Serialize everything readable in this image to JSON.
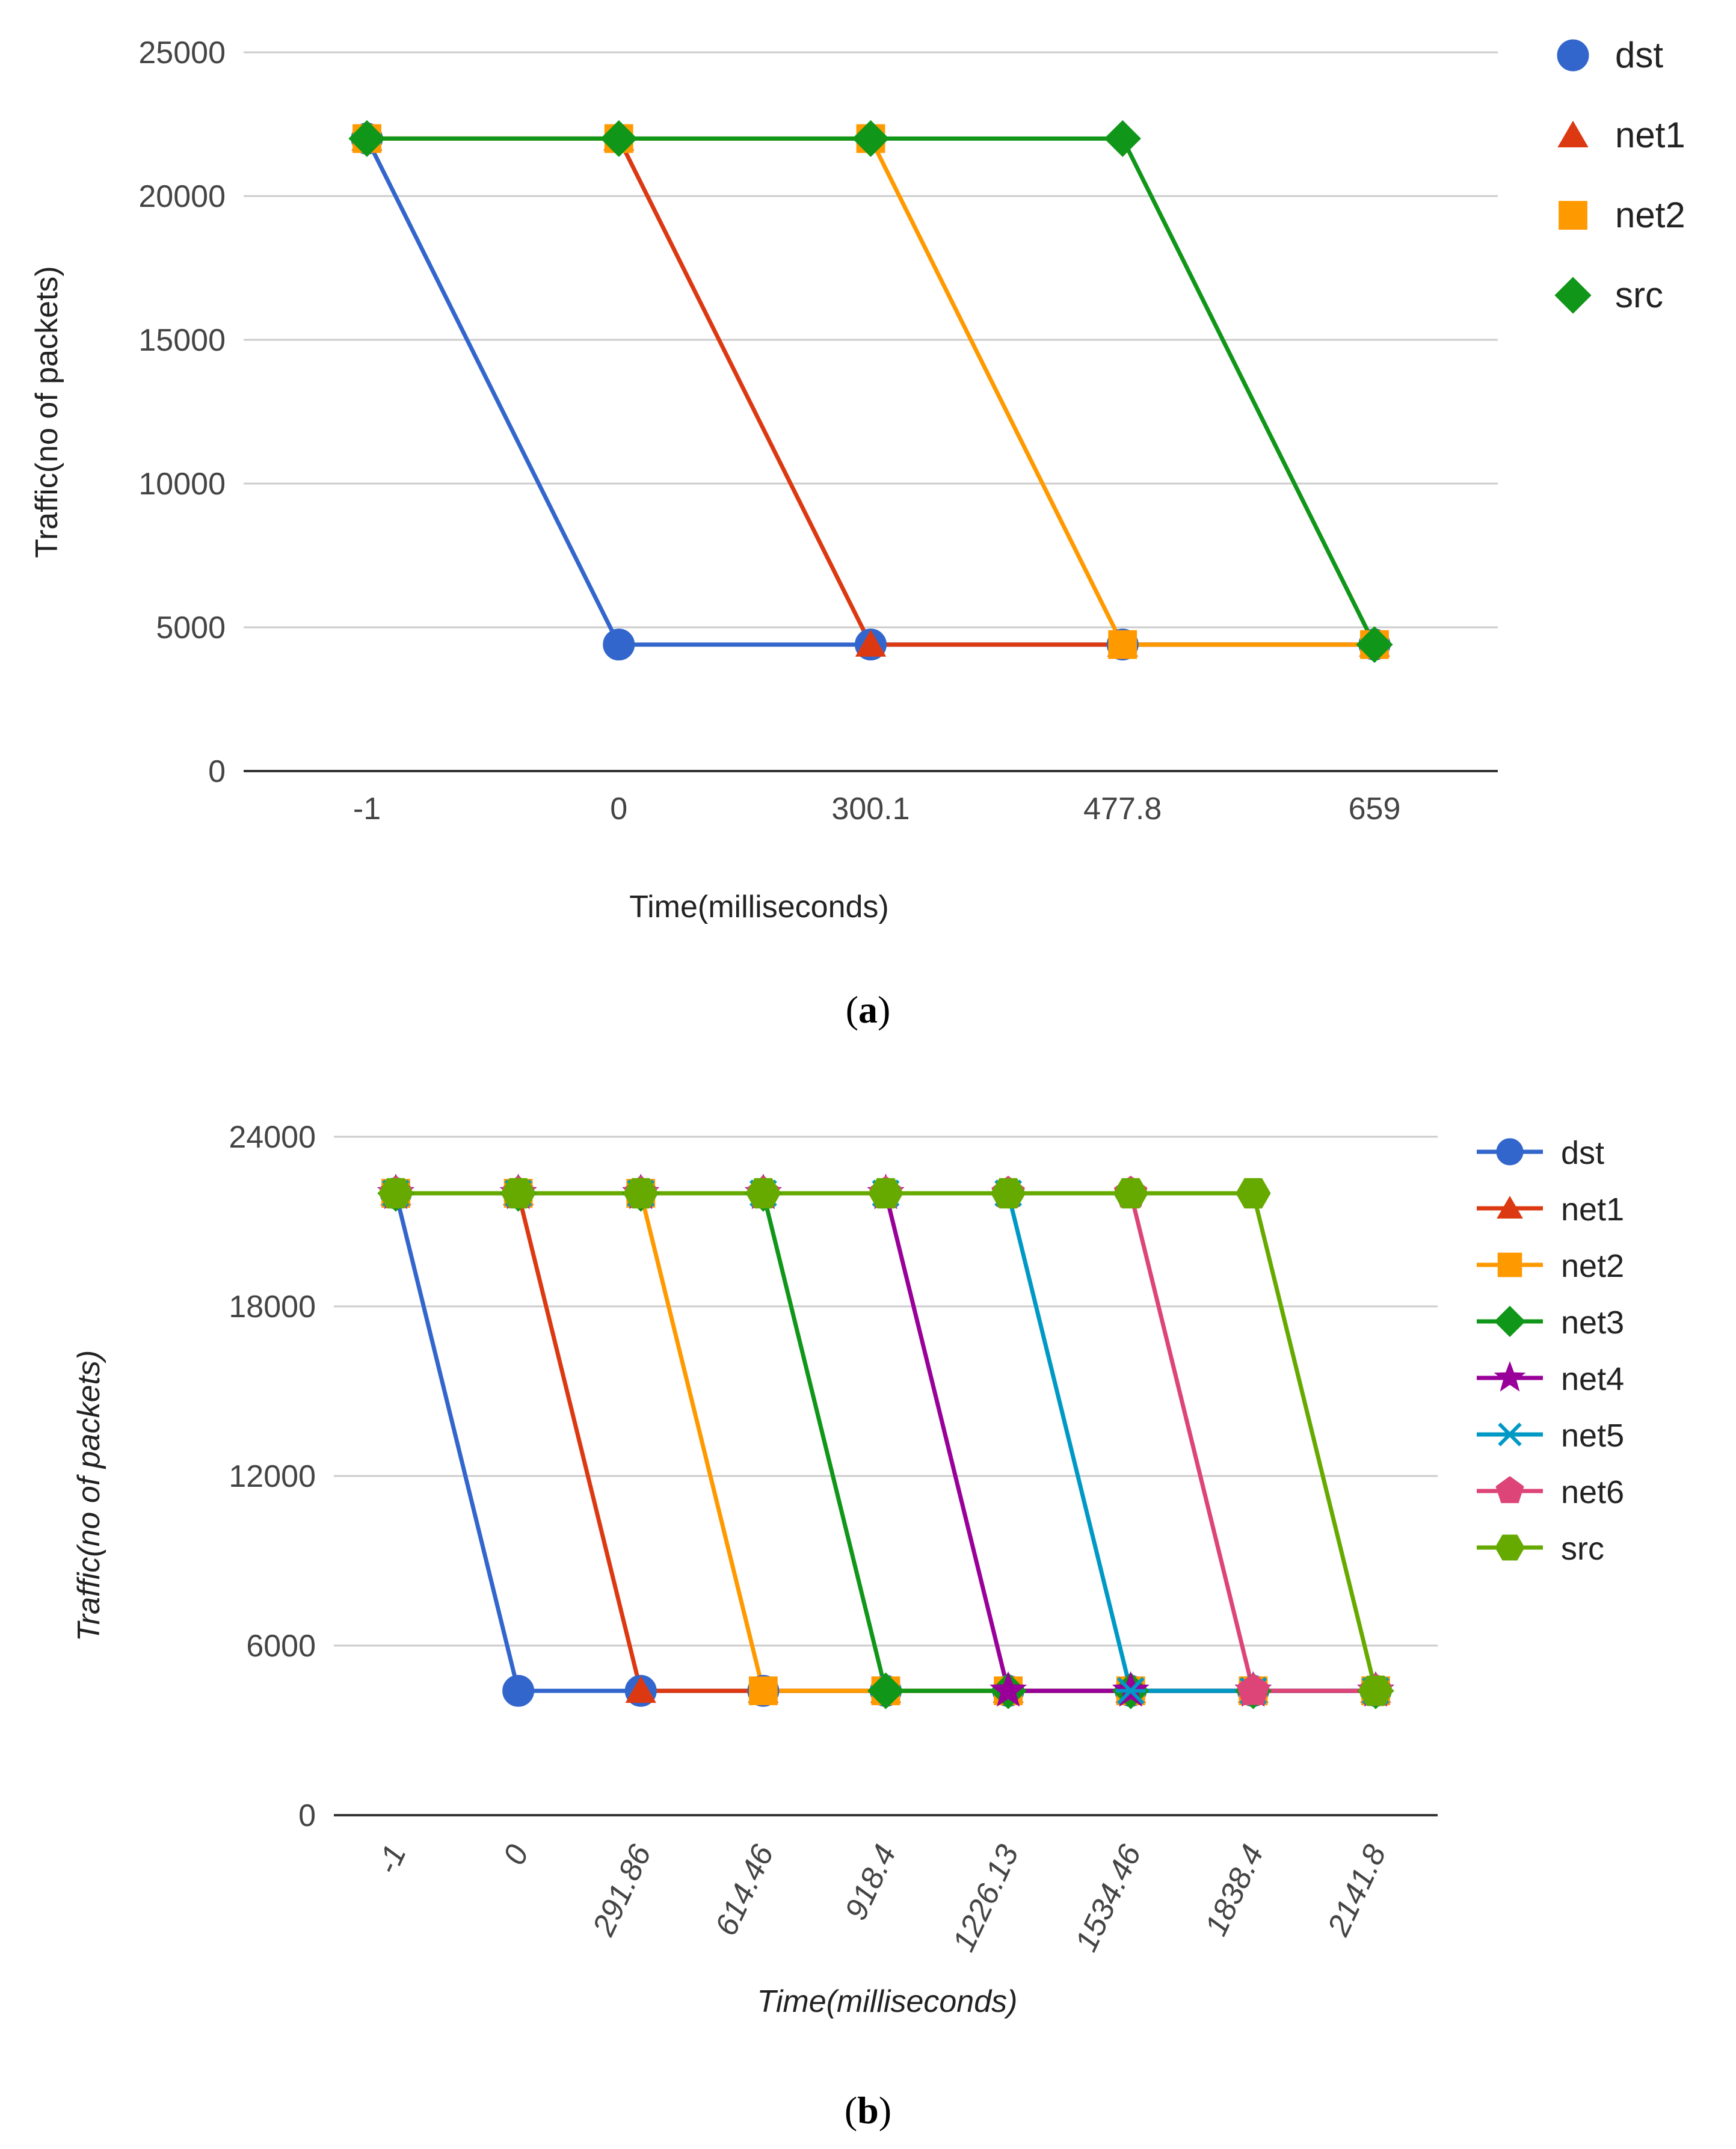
{
  "chart_data": [
    {
      "type": "line",
      "caption_open": "(",
      "caption_letter": "a",
      "caption_close": ")",
      "xlabel": "Time(milliseconds)",
      "ylabel": "Traffic(no of packets)",
      "categories": [
        "-1",
        "0",
        "300.1",
        "477.8",
        "659"
      ],
      "ylim": [
        0,
        25000
      ],
      "yticks": [
        "0",
        "5000",
        "10000",
        "15000",
        "20000",
        "25000"
      ],
      "ytick_values": [
        0,
        5000,
        10000,
        15000,
        20000,
        25000
      ],
      "legend_position": "right",
      "series": [
        {
          "name": "dst",
          "color": "#3366cc",
          "marker": "circle",
          "values": [
            22000,
            4400,
            4400,
            4400,
            4400
          ]
        },
        {
          "name": "net1",
          "color": "#dc3912",
          "marker": "triangle",
          "values": [
            22000,
            22000,
            4400,
            4400,
            4400
          ]
        },
        {
          "name": "net2",
          "color": "#ff9900",
          "marker": "square",
          "values": [
            22000,
            22000,
            22000,
            4400,
            4400
          ]
        },
        {
          "name": "src",
          "color": "#109618",
          "marker": "diamond",
          "values": [
            22000,
            22000,
            22000,
            22000,
            4400
          ]
        }
      ]
    },
    {
      "type": "line",
      "caption_open": "(",
      "caption_letter": "b",
      "caption_close": ")",
      "xlabel": "Time(milliseconds)",
      "ylabel": "Traffic(no of packets)",
      "categories": [
        "-1",
        "0",
        "291.86",
        "614.46",
        "918.4",
        "1226.13",
        "1534.46",
        "1838.4",
        "2141.8"
      ],
      "ylim": [
        0,
        24000
      ],
      "yticks": [
        "0",
        "6000",
        "12000",
        "18000",
        "24000"
      ],
      "ytick_values": [
        0,
        6000,
        12000,
        18000,
        24000
      ],
      "legend_position": "right",
      "series": [
        {
          "name": "dst",
          "color": "#3366cc",
          "marker": "circle",
          "values": [
            22000,
            4400,
            4400,
            4400,
            4400,
            4400,
            4400,
            4400,
            4400
          ]
        },
        {
          "name": "net1",
          "color": "#dc3912",
          "marker": "triangle",
          "values": [
            22000,
            22000,
            4400,
            4400,
            4400,
            4400,
            4400,
            4400,
            4400
          ]
        },
        {
          "name": "net2",
          "color": "#ff9900",
          "marker": "square",
          "values": [
            22000,
            22000,
            22000,
            4400,
            4400,
            4400,
            4400,
            4400,
            4400
          ]
        },
        {
          "name": "net3",
          "color": "#109618",
          "marker": "diamond",
          "values": [
            22000,
            22000,
            22000,
            22000,
            4400,
            4400,
            4400,
            4400,
            4400
          ]
        },
        {
          "name": "net4",
          "color": "#990099",
          "marker": "star",
          "values": [
            22000,
            22000,
            22000,
            22000,
            22000,
            4400,
            4400,
            4400,
            4400
          ]
        },
        {
          "name": "net5",
          "color": "#0099c6",
          "marker": "x",
          "values": [
            22000,
            22000,
            22000,
            22000,
            22000,
            22000,
            4400,
            4400,
            4400
          ]
        },
        {
          "name": "net6",
          "color": "#dd4477",
          "marker": "pentagon",
          "values": [
            22000,
            22000,
            22000,
            22000,
            22000,
            22000,
            22000,
            4400,
            4400
          ]
        },
        {
          "name": "src",
          "color": "#66aa00",
          "marker": "hexagon",
          "values": [
            22000,
            22000,
            22000,
            22000,
            22000,
            22000,
            22000,
            22000,
            4400
          ]
        }
      ]
    }
  ]
}
